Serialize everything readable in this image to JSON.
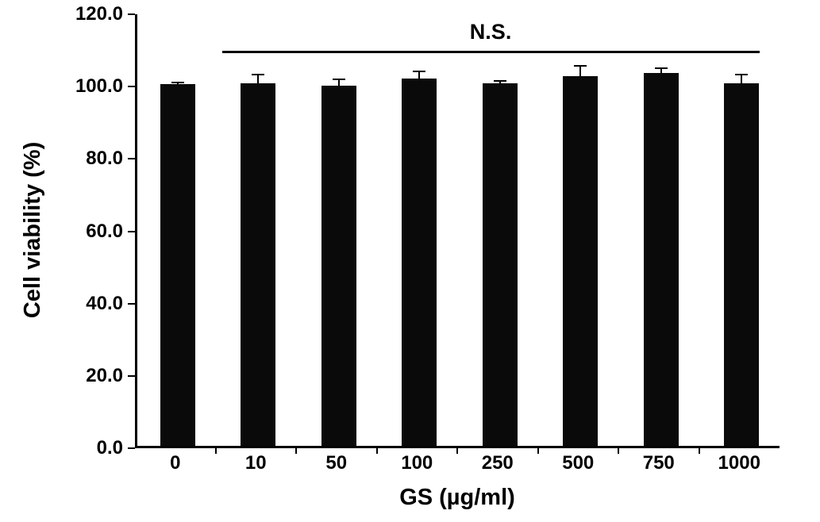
{
  "chart_data": {
    "type": "bar",
    "title": "",
    "xlabel": "GS (µg/ml)",
    "ylabel": "Cell viability (%)",
    "categories": [
      "0",
      "10",
      "50",
      "100",
      "250",
      "500",
      "750",
      "1000"
    ],
    "values": [
      100.0,
      100.2,
      99.7,
      101.5,
      100.2,
      102.2,
      103.2,
      100.2
    ],
    "errors_upper": [
      0.8,
      2.8,
      1.8,
      2.2,
      1.0,
      3.2,
      1.5,
      2.8
    ],
    "ylim": [
      0,
      120
    ],
    "yticks": [
      0,
      20,
      40,
      60,
      80,
      100,
      120
    ],
    "ytick_labels": [
      "0.0",
      "20.0",
      "40.0",
      "60.0",
      "80.0",
      "100.0",
      "120.0"
    ],
    "bar_color": "#0a0a0a",
    "axis_color": "#000000",
    "background_color": "#ffffff",
    "grid": false,
    "legend": null,
    "annotation": {
      "label": "N.S.",
      "y": 110,
      "from_category": "10",
      "to_category": "1000"
    }
  }
}
